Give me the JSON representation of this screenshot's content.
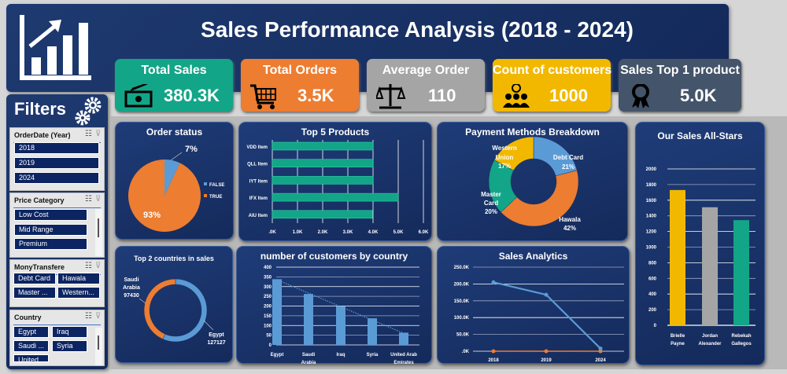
{
  "header": {
    "title": "Sales Performance Analysis (2018 - 2024)",
    "logo_icon": "bar-chart-growth-icon"
  },
  "kpis": [
    {
      "label": "Total Sales",
      "value": "380.3K",
      "icon": "money-icon",
      "color": "#13a587"
    },
    {
      "label": "Total Orders",
      "value": "3.5K",
      "icon": "shopping-cart-icon",
      "color": "#ed7d31"
    },
    {
      "label": "Average Order",
      "value": "110",
      "icon": "scale-icon",
      "color": "#a5a5a5"
    },
    {
      "label": "Count of customers",
      "value": "1000",
      "icon": "people-idea-icon",
      "color": "#f2b800"
    },
    {
      "label": "Sales Top 1 product",
      "value": "5.0K",
      "icon": "award-ribbon-icon",
      "color": "#44546a"
    }
  ],
  "filters": {
    "title": "Filters",
    "slicers": [
      {
        "title": "OrderDate (Year)",
        "items": [
          "2018",
          "2019",
          "2024"
        ]
      },
      {
        "title": "Price Category",
        "items": [
          "Low Cost",
          "Mid Range",
          "Premium"
        ]
      },
      {
        "title": "MonyTransfere",
        "items": [
          "Debt Card",
          "Hawala",
          "Master ...",
          "Western..."
        ]
      },
      {
        "title": "Country",
        "items": [
          "Egypt",
          "Iraq",
          "Saudi ...",
          "Syria",
          "United"
        ]
      }
    ]
  },
  "chart_data": [
    {
      "id": "order_status",
      "type": "pie",
      "title": "Order status",
      "categories": [
        "FALSE",
        "TRUE"
      ],
      "values": [
        7,
        93
      ],
      "labels": [
        "7%",
        "93%"
      ],
      "colors": [
        "#5b9bd5",
        "#ed7d31"
      ],
      "legend": "right"
    },
    {
      "id": "top5",
      "type": "bar",
      "orientation": "horizontal",
      "title": "Top 5 Products",
      "categories": [
        "VDD Item",
        "QLL Item",
        "IYT Item",
        "IFX Item",
        "AIU Item"
      ],
      "values": [
        4000,
        4000,
        4000,
        5000,
        3980
      ],
      "xlim": [
        0,
        6000
      ],
      "ticks": [
        ".0K",
        "1.0K",
        "2.0K",
        "3.0K",
        "4.0K",
        "5.0K",
        "6.0K"
      ],
      "color": "#13a587",
      "grid": true
    },
    {
      "id": "payment",
      "type": "pie",
      "donut": true,
      "title": "Payment Methods Breakdown",
      "categories": [
        "Debt Card",
        "Hawala",
        "Master Card",
        "Western Union"
      ],
      "label_lines": [
        [
          "Debt Card",
          "21%"
        ],
        [
          "Hawala",
          "42%"
        ],
        [
          "Master",
          "Card",
          "20%"
        ],
        [
          "Western",
          "Union",
          "17%"
        ]
      ],
      "values": [
        21,
        42,
        20,
        17
      ],
      "colors": [
        "#5b9bd5",
        "#ed7d31",
        "#13a587",
        "#f2b800"
      ]
    },
    {
      "id": "allstars",
      "type": "bar",
      "title": "Our Sales All-Stars",
      "categories": [
        [
          "Brielle",
          "Payne"
        ],
        [
          "Jordan",
          "Alexander"
        ],
        [
          "Rebekah",
          "Gallegos"
        ]
      ],
      "values": [
        1730,
        1510,
        1345
      ],
      "colors": [
        "#f2b800",
        "#a5a5a5",
        "#13a587"
      ],
      "ylim": [
        0,
        2000
      ],
      "ticks": [
        "0",
        "200",
        "400",
        "600",
        "800",
        "1000",
        "1200",
        "1400",
        "1600",
        "1800",
        "2000"
      ],
      "grid": true
    },
    {
      "id": "top2",
      "type": "pie",
      "donut": true,
      "title": "Top 2 countries in sales",
      "categories": [
        "Egypt",
        "Saudi Arabia"
      ],
      "label_lines": [
        [
          "Egypt",
          "127127"
        ],
        [
          "Saudi",
          "Arabia",
          "97430"
        ]
      ],
      "values": [
        127127,
        97430
      ],
      "colors": [
        "#5b9bd5",
        "#ed7d31"
      ]
    },
    {
      "id": "customers",
      "type": "bar",
      "title": "number of customers by country",
      "categories": [
        [
          "Egypt"
        ],
        [
          "Saudi",
          "Arabia"
        ],
        [
          "Iraq"
        ],
        [
          "Syria"
        ],
        [
          "United Arab",
          "Emirates"
        ]
      ],
      "values": [
        338,
        262,
        198,
        137,
        63
      ],
      "ylim": [
        0,
        400
      ],
      "ticks": [
        "0",
        "50",
        "100",
        "150",
        "200",
        "250",
        "300",
        "350",
        "400"
      ],
      "color": "#5b9bd5",
      "trendline": "linear dotted",
      "grid": true
    },
    {
      "id": "sales",
      "type": "line",
      "title": "Sales Analytics",
      "x": [
        "2018",
        "2019",
        "2024"
      ],
      "series": [
        {
          "values": [
            205000,
            168000,
            8000
          ],
          "color": "#5b9bd5"
        },
        {
          "values": [
            0,
            0,
            0
          ],
          "color": "#ed7d31"
        }
      ],
      "ylim": [
        0,
        250000
      ],
      "ticks": [
        ".0K",
        "50.0K",
        "100.0K",
        "150.0K",
        "200.0K",
        "250.0K"
      ],
      "grid": true
    }
  ]
}
